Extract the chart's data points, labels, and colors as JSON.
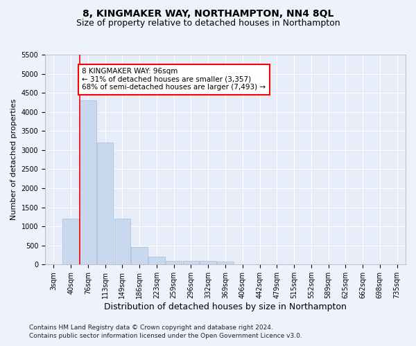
{
  "title": "8, KINGMAKER WAY, NORTHAMPTON, NN4 8QL",
  "subtitle": "Size of property relative to detached houses in Northampton",
  "xlabel": "Distribution of detached houses by size in Northampton",
  "ylabel": "Number of detached properties",
  "footnote1": "Contains HM Land Registry data © Crown copyright and database right 2024.",
  "footnote2": "Contains public sector information licensed under the Open Government Licence v3.0.",
  "bar_labels": [
    "3sqm",
    "40sqm",
    "76sqm",
    "113sqm",
    "149sqm",
    "186sqm",
    "223sqm",
    "259sqm",
    "296sqm",
    "332sqm",
    "369sqm",
    "406sqm",
    "442sqm",
    "479sqm",
    "515sqm",
    "552sqm",
    "589sqm",
    "625sqm",
    "662sqm",
    "698sqm",
    "735sqm"
  ],
  "bar_values": [
    0,
    1200,
    4300,
    3200,
    1200,
    450,
    200,
    100,
    100,
    100,
    70,
    0,
    0,
    0,
    0,
    0,
    0,
    0,
    0,
    0,
    0
  ],
  "bar_color": "#c8d8ee",
  "bar_edge_color": "#a8bcd8",
  "annotation_text": "8 KINGMAKER WAY: 96sqm\n← 31% of detached houses are smaller (3,357)\n68% of semi-detached houses are larger (7,493) →",
  "annotation_box_color": "white",
  "annotation_box_edge": "red",
  "ylim": [
    0,
    5500
  ],
  "yticks": [
    0,
    500,
    1000,
    1500,
    2000,
    2500,
    3000,
    3500,
    4000,
    4500,
    5000,
    5500
  ],
  "title_fontsize": 10,
  "subtitle_fontsize": 9,
  "xlabel_fontsize": 9,
  "ylabel_fontsize": 8,
  "annotation_fontsize": 7.5,
  "tick_fontsize": 7,
  "footnote_fontsize": 6.5,
  "background_color": "#eef2fb",
  "plot_bg_color": "#e6ecf8"
}
